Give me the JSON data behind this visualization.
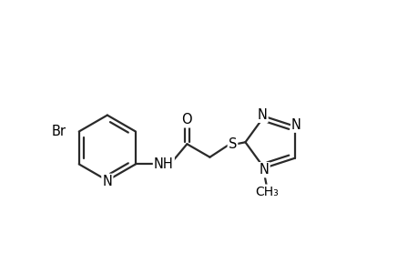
{
  "bg_color": "#ffffff",
  "line_color": "#2a2a2a",
  "atom_color": "#000000",
  "line_width": 1.6,
  "font_size": 10.5,
  "figsize": [
    4.6,
    3.0
  ],
  "dpi": 100,
  "xlim": [
    0,
    9.2
  ],
  "ylim": [
    1.0,
    6.0
  ]
}
